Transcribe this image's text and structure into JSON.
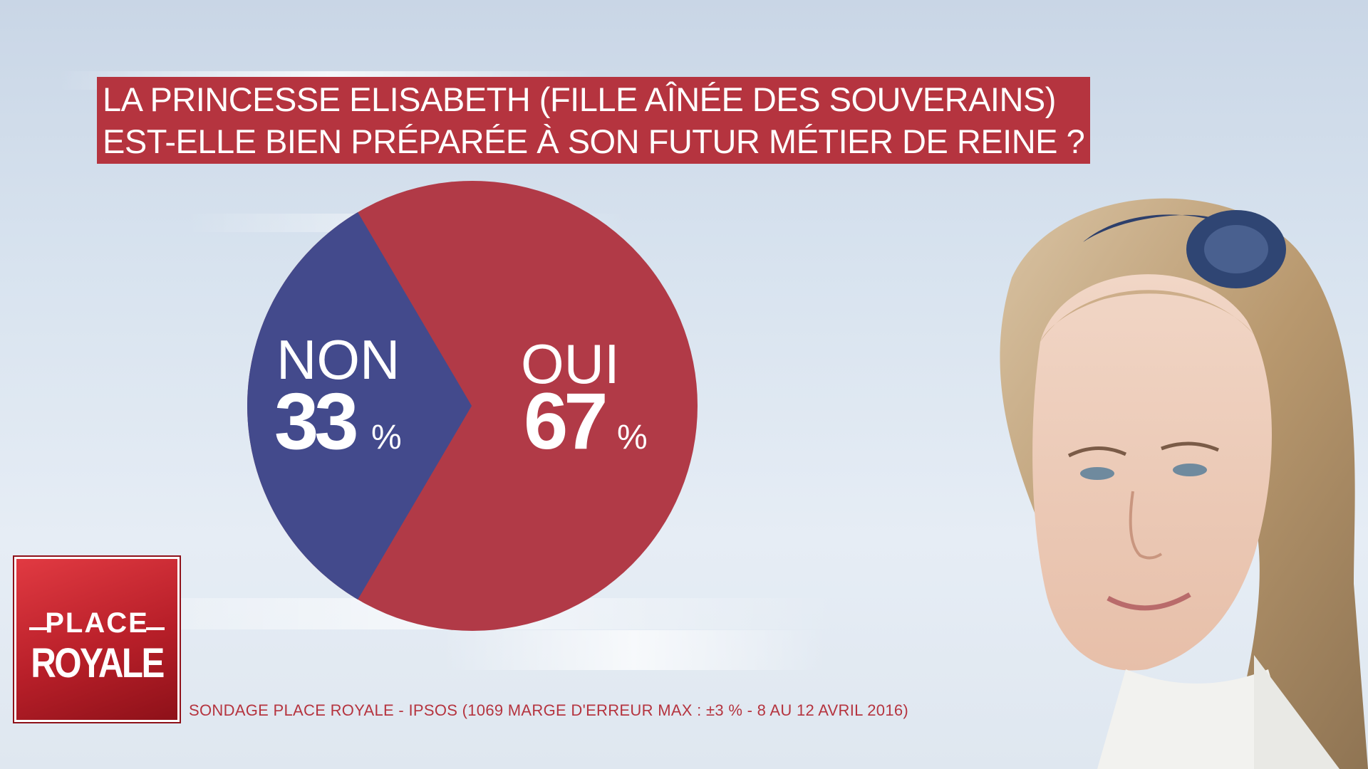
{
  "title": {
    "line1": "LA PRINCESSE ELISABETH (FILLE AÎNÉE DES SOUVERAINS)",
    "line2": "EST-ELLE BIEN PRÉPARÉE À SON FUTUR MÉTIER DE REINE ?"
  },
  "chart_data": {
    "type": "pie",
    "title": "LA PRINCESSE ELISABETH (FILLE AÎNÉE DES SOUVERAINS) EST-ELLE BIEN PRÉPARÉE À SON FUTUR MÉTIER DE REINE ?",
    "slices": [
      {
        "label": "OUI",
        "value": 67,
        "unit": "%",
        "color": "#b13a47"
      },
      {
        "label": "NON",
        "value": 33,
        "unit": "%",
        "color": "#434a8c"
      }
    ],
    "legend": "none"
  },
  "logo": {
    "line1": "PLACE",
    "line2": "ROYALE"
  },
  "footer": {
    "source": "SONDAGE PLACE ROYALE - IPSOS (1069 MARGE D'ERREUR MAX : ±3 % - 8 AU 12 AVRIL 2016)"
  },
  "colors": {
    "accent": "#b5343f",
    "oui": "#b13a47",
    "non": "#434a8c"
  }
}
